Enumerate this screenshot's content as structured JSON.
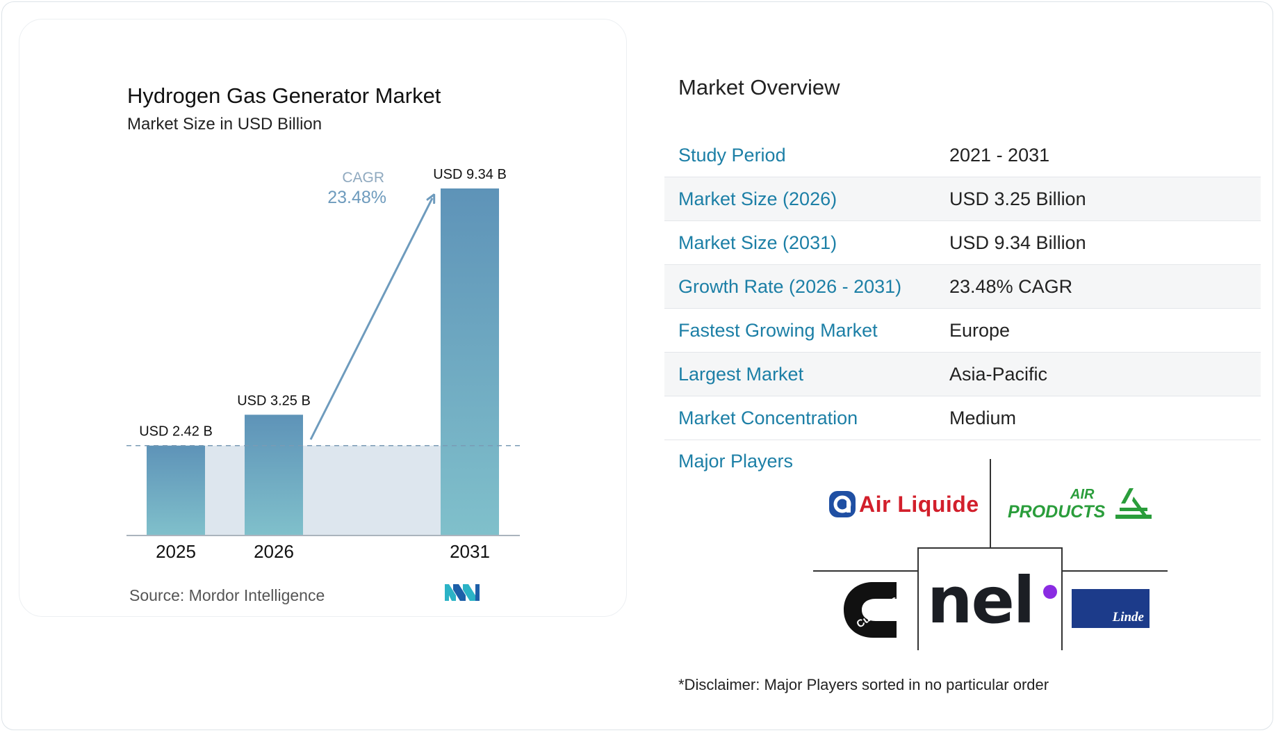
{
  "chart_data": {
    "type": "bar",
    "title": "Hydrogen Gas Generator Market",
    "subtitle": "Market Size in USD Billion",
    "categories": [
      "2025",
      "2026",
      "2031"
    ],
    "values": [
      2.42,
      3.25,
      9.34
    ],
    "data_labels": [
      "USD 2.42 B",
      "USD 3.25 B",
      "USD 9.34 B"
    ],
    "cagr_label": "CAGR",
    "cagr_value": "23.48%",
    "source": "Source: Mordor Intelligence",
    "ylim": [
      0,
      9.34
    ],
    "grid": false,
    "colors": {
      "bar_top": "#5e93b8",
      "bar_bottom": "#80c0cb",
      "band": "#dde6ee",
      "dashed": "#7a9bb5",
      "cagr": "#6e9bbd"
    }
  },
  "overview": {
    "title": "Market Overview",
    "rows": [
      {
        "label": "Study Period",
        "value": "2021 - 2031"
      },
      {
        "label": "Market Size (2026)",
        "value": "USD 3.25 Billion"
      },
      {
        "label": "Market Size (2031)",
        "value": "USD 9.34 Billion"
      },
      {
        "label": "Growth Rate (2026 - 2031)",
        "value": "23.48% CAGR"
      },
      {
        "label": "Fastest Growing Market",
        "value": "Europe"
      },
      {
        "label": "Largest Market",
        "value": "Asia-Pacific"
      },
      {
        "label": "Market Concentration",
        "value": "Medium"
      }
    ]
  },
  "players": {
    "title": "Major Players",
    "logos": {
      "air_liquide": "Air Liquide",
      "air_products_top": "AIR",
      "air_products_bottom": "PRODUCTS",
      "cummins": "Cummins",
      "nel": "nel",
      "linde": "Linde"
    }
  },
  "disclaimer": "*Disclaimer: Major Players sorted in no particular order"
}
